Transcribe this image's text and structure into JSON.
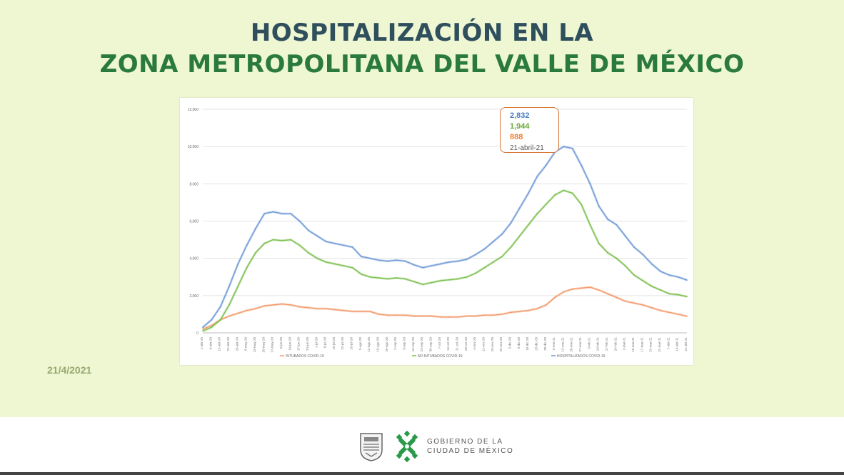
{
  "title": {
    "line1": "HOSPITALIZACIÓN EN LA",
    "line2": "ZONA METROPOLITANA DEL VALLE DE MÉXICO"
  },
  "date": "21/4/2021",
  "callout": {
    "hospitalizados": "2,832",
    "no_intubados": "1,944",
    "intubados": "888",
    "date": "21-abril-21"
  },
  "footer": {
    "gov_line1": "GOBIERNO DE LA",
    "gov_line2": "CIUDAD DE MÉXICO"
  },
  "colors": {
    "hospitalizados": "#6f9ad6",
    "no_intubados": "#7cc04f",
    "intubados": "#f29a6a"
  },
  "chart_data": {
    "type": "line",
    "title": "",
    "xlabel": "",
    "ylabel": "",
    "ylim": [
      0,
      12000
    ],
    "yticks": [
      "0",
      "2,000",
      "4,000",
      "6,000",
      "8,000",
      "10,000",
      "12,000"
    ],
    "ytick_values": [
      0,
      2000,
      4000,
      6000,
      8000,
      10000,
      12000
    ],
    "categories": [
      "1-abr-20",
      "8-abr-20",
      "15-abr-20",
      "22-abr-20",
      "29-abr-20",
      "6-may-20",
      "13-may-20",
      "20-may-20",
      "27-may-20",
      "3-jun-20",
      "10-jun-20",
      "17-jun-20",
      "24-jun-20",
      "1-jul-20",
      "8-jul-20",
      "15-jul-20",
      "22-jul-20",
      "29-jul-20",
      "5-ago-20",
      "12-ago-20",
      "19-ago-20",
      "26-ago-20",
      "2-sep-20",
      "9-sep-20",
      "16-sep-20",
      "23-sep-20",
      "30-sep-20",
      "7-oct-20",
      "14-oct-20",
      "21-oct-20",
      "28-oct-20",
      "4-nov-20",
      "11-nov-20",
      "18-nov-20",
      "25-nov-20",
      "2-dic-20",
      "9-dic-20",
      "16-dic-20",
      "23-dic-20",
      "30-dic-20",
      "6-ene-21",
      "13-ene-21",
      "20-ene-21",
      "27-ene-21",
      "3-feb-21",
      "10-feb-21",
      "17-feb-21",
      "24-feb-21",
      "3-mar-21",
      "10-mar-21",
      "17-mar-21",
      "24-mar-21",
      "31-mar-21",
      "7-abr-21",
      "14-abr-21",
      "21-abr-21"
    ],
    "series": [
      {
        "name": "INTUBADOS COVID-19",
        "values": [
          200,
          400,
          700,
          900,
          1050,
          1200,
          1300,
          1450,
          1500,
          1550,
          1500,
          1400,
          1350,
          1300,
          1300,
          1250,
          1200,
          1150,
          1150,
          1150,
          1000,
          950,
          950,
          950,
          900,
          900,
          900,
          850,
          850,
          850,
          900,
          900,
          950,
          950,
          1000,
          1100,
          1150,
          1200,
          1300,
          1500,
          1900,
          2200,
          2350,
          2400,
          2450,
          2300,
          2100,
          1900,
          1700,
          1600,
          1500,
          1350,
          1200,
          1100,
          1000,
          888
        ]
      },
      {
        "name": "NO INTUBADOS COVID-19",
        "values": [
          100,
          300,
          700,
          1500,
          2500,
          3500,
          4300,
          4800,
          5000,
          4950,
          5000,
          4700,
          4300,
          4000,
          3800,
          3700,
          3600,
          3500,
          3150,
          3000,
          2950,
          2900,
          2950,
          2900,
          2750,
          2600,
          2700,
          2800,
          2850,
          2900,
          3000,
          3200,
          3500,
          3800,
          4100,
          4600,
          5200,
          5800,
          6400,
          6900,
          7400,
          7650,
          7500,
          6900,
          5800,
          4800,
          4300,
          4000,
          3600,
          3100,
          2800,
          2500,
          2300,
          2100,
          2050,
          1944
        ]
      },
      {
        "name": "HOSPITALIZADOS COVID-19",
        "values": [
          300,
          700,
          1400,
          2500,
          3700,
          4700,
          5600,
          6400,
          6500,
          6400,
          6400,
          6000,
          5500,
          5200,
          4900,
          4800,
          4700,
          4600,
          4100,
          4000,
          3900,
          3850,
          3900,
          3850,
          3650,
          3500,
          3600,
          3700,
          3800,
          3850,
          3950,
          4200,
          4500,
          4900,
          5300,
          5900,
          6700,
          7500,
          8400,
          9000,
          9700,
          10000,
          9900,
          9000,
          8000,
          6800,
          6100,
          5800,
          5200,
          4600,
          4200,
          3700,
          3300,
          3100,
          3000,
          2832
        ]
      }
    ],
    "legend_position": "bottom"
  }
}
